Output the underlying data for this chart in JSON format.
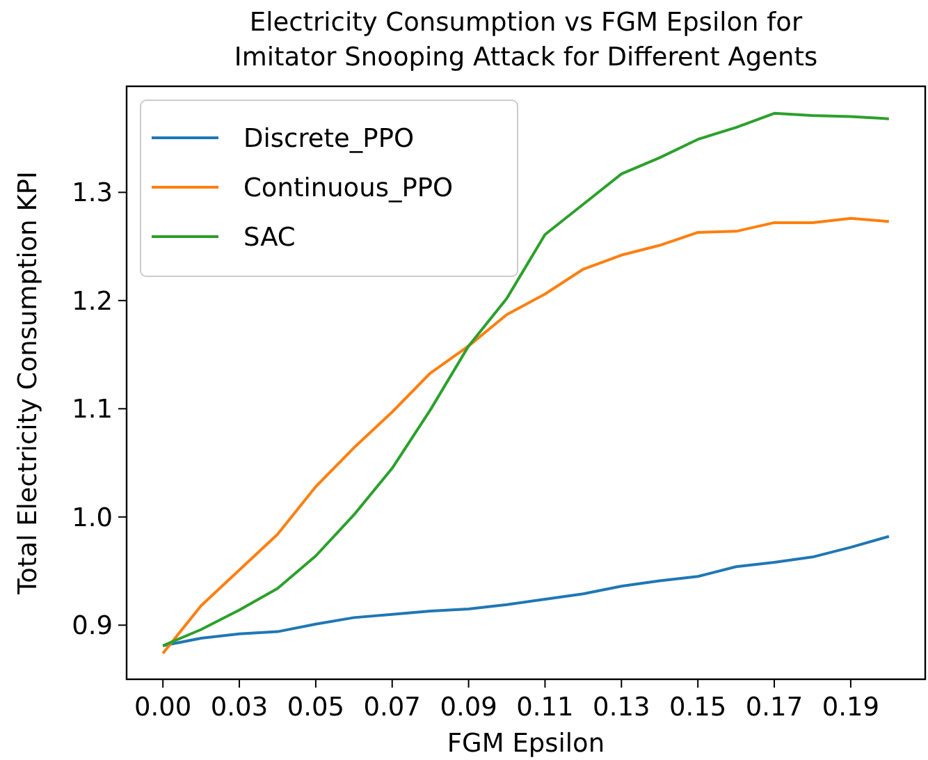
{
  "chart_data": {
    "type": "line",
    "title": "Electricity Consumption vs FGM Epsilon for\nImitator Snooping Attack for Different Agents",
    "xlabel": "FGM Epsilon",
    "ylabel": "Total Electricity Consumption KPI",
    "categories": [
      "0.00",
      null,
      "0.03",
      null,
      "0.05",
      null,
      "0.07",
      null,
      "0.09",
      null,
      "0.11",
      null,
      "0.13",
      null,
      "0.15",
      null,
      "0.17",
      null,
      "0.19",
      null
    ],
    "ylim": [
      0.85,
      1.398
    ],
    "yticks": [
      {
        "value": 0.9,
        "label": "0.9"
      },
      {
        "value": 1.0,
        "label": "1.0"
      },
      {
        "value": 1.1,
        "label": "1.1"
      },
      {
        "value": 1.2,
        "label": "1.2"
      },
      {
        "value": 1.3,
        "label": "1.3"
      }
    ],
    "legend": "top left",
    "series": [
      {
        "name": "Discrete_PPO",
        "color": "#1f77b4",
        "values": [
          0.881,
          0.888,
          0.892,
          0.894,
          0.901,
          0.907,
          0.91,
          0.913,
          0.915,
          0.919,
          0.924,
          0.929,
          0.936,
          0.941,
          0.945,
          0.954,
          0.958,
          0.963,
          0.972,
          0.982
        ]
      },
      {
        "name": "Continuous_PPO",
        "color": "#ff7f0e",
        "values": [
          0.874,
          0.918,
          0.951,
          0.984,
          1.028,
          1.064,
          1.097,
          1.133,
          1.158,
          1.187,
          1.206,
          1.229,
          1.242,
          1.251,
          1.263,
          1.264,
          1.272,
          1.272,
          1.276,
          1.273
        ]
      },
      {
        "name": "SAC",
        "color": "#2ca02c",
        "values": [
          0.881,
          0.896,
          0.914,
          0.934,
          0.964,
          1.002,
          1.045,
          1.099,
          1.158,
          1.202,
          1.261,
          1.289,
          1.317,
          1.332,
          1.349,
          1.36,
          1.373,
          1.371,
          1.37,
          1.368
        ]
      }
    ]
  }
}
